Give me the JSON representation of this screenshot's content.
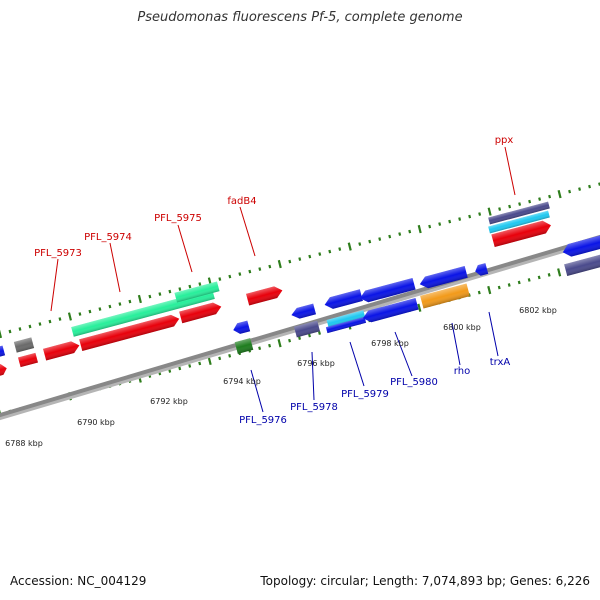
{
  "title": "Pseudomonas fluorescens Pf-5, complete genome",
  "footer": {
    "accession": "Accession: NC_004129",
    "topology": "Topology: circular; Length: 7,074,893 bp; Genes: 6,226"
  },
  "colors": {
    "red": "#e8000b",
    "blue": "#0a14e6",
    "green": "#27ef9b",
    "gray": "#6a6a6a",
    "navy": "#4a4a8c",
    "cyan": "#1ec8f0",
    "orange": "#f29a1a",
    "darkgreen": "#1e7d1e",
    "backbone": "#888888",
    "tick": "#2e7d1c"
  },
  "scale_labels": [
    "6788 kbp",
    "6790 kbp",
    "6792 kbp",
    "6794 kbp",
    "6796 kbp",
    "6798 kbp",
    "6800 kbp",
    "6802 kbp"
  ],
  "gene_labels_top": [
    "PFL_5973",
    "PFL_5974",
    "PFL_5975",
    "fadB4",
    "ppx"
  ],
  "gene_labels_bottom": [
    "PFL_5976",
    "PFL_5978",
    "PFL_5979",
    "PFL_5980",
    "rho",
    "trxA"
  ]
}
